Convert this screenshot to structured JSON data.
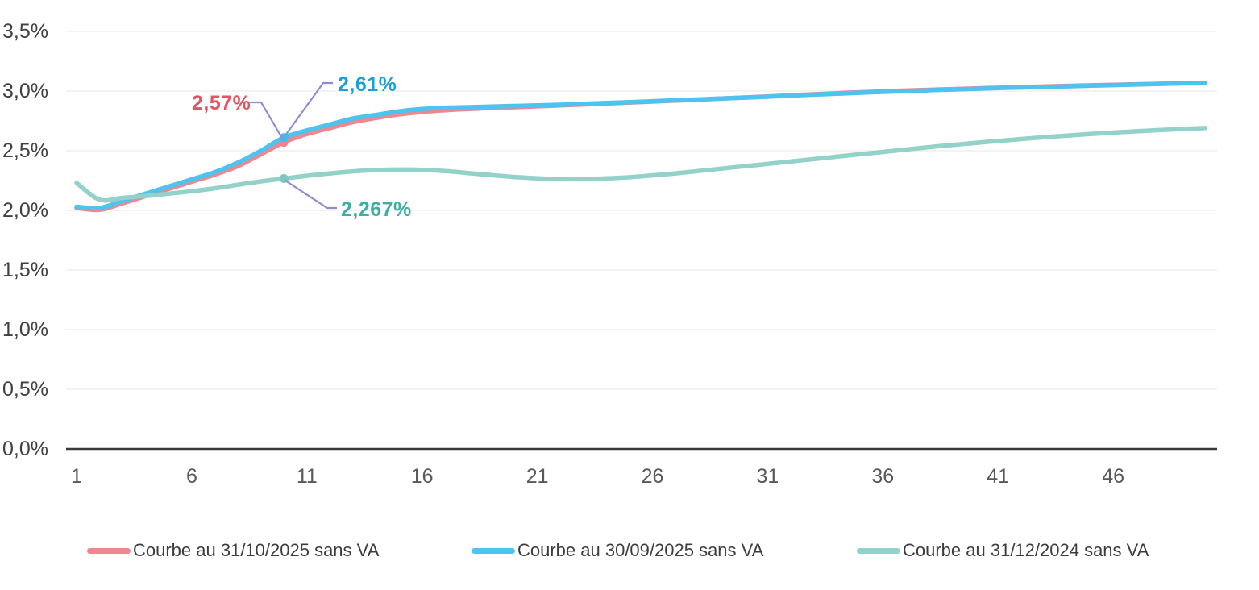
{
  "axes": {
    "y_ticks": [
      "3,5%",
      "3,0%",
      "2,5%",
      "2,0%",
      "1,5%",
      "1,0%",
      "0,5%",
      "0,0%"
    ],
    "x_ticks": [
      "1",
      "6",
      "11",
      "16",
      "21",
      "26",
      "31",
      "36",
      "41",
      "46"
    ]
  },
  "annotations": {
    "red_point_label": "2,57%",
    "blue_point_label": "2,61%",
    "teal_point_label": "2,267%"
  },
  "legend": {
    "items": [
      {
        "label": "Courbe au 31/10/2025 sans VA",
        "color": "#F0868E"
      },
      {
        "label": "Courbe au 30/09/2025 sans VA",
        "color": "#4DC3F0"
      },
      {
        "label": "Courbe au 31/12/2024 sans VA",
        "color": "#92D2C9"
      }
    ]
  },
  "colors": {
    "red_series": "#F0868E",
    "blue_series": "#4DC3F0",
    "teal_series": "#92D2C9",
    "red_label_text": "#E25563",
    "blue_label_text": "#1AA0DB",
    "teal_label_text": "#3FAFA4",
    "callout_line": "#8D8DD6",
    "gridline": "#EFEFEF",
    "axis_line": "#3a3a3a"
  },
  "chart_data": {
    "type": "line",
    "x": [
      1,
      2,
      3,
      4,
      5,
      6,
      7,
      8,
      9,
      10,
      11,
      12,
      13,
      14,
      15,
      16,
      17,
      18,
      19,
      20,
      21,
      22,
      23,
      24,
      25,
      26,
      27,
      28,
      29,
      30,
      31,
      32,
      33,
      34,
      35,
      36,
      37,
      38,
      39,
      40,
      41,
      42,
      43,
      44,
      45,
      46,
      47,
      48,
      49,
      50
    ],
    "series": [
      {
        "name": "Courbe au 31/10/2025 sans VA",
        "color": "#F0868E",
        "values": [
          2.02,
          2.005,
          2.06,
          2.12,
          2.18,
          2.24,
          2.3,
          2.37,
          2.47,
          2.57,
          2.64,
          2.69,
          2.74,
          2.775,
          2.805,
          2.825,
          2.84,
          2.85,
          2.858,
          2.865,
          2.872,
          2.88,
          2.888,
          2.896,
          2.904,
          2.912,
          2.92,
          2.928,
          2.937,
          2.946,
          2.955,
          2.964,
          2.973,
          2.982,
          2.99,
          2.997,
          3.004,
          3.01,
          3.016,
          3.022,
          3.028,
          3.033,
          3.038,
          3.043,
          3.048,
          3.053,
          3.057,
          3.061,
          3.065,
          3.068
        ]
      },
      {
        "name": "Courbe au 30/09/2025 sans VA",
        "color": "#4DC3F0",
        "values": [
          2.03,
          2.02,
          2.08,
          2.14,
          2.2,
          2.26,
          2.32,
          2.4,
          2.5,
          2.61,
          2.67,
          2.72,
          2.77,
          2.8,
          2.83,
          2.85,
          2.86,
          2.865,
          2.87,
          2.875,
          2.88,
          2.885,
          2.893,
          2.9,
          2.907,
          2.915,
          2.923,
          2.93,
          2.938,
          2.945,
          2.953,
          2.962,
          2.97,
          2.978,
          2.986,
          2.993,
          3.0,
          3.007,
          3.013,
          3.019,
          3.025,
          3.03,
          3.035,
          3.04,
          3.045,
          3.05,
          3.055,
          3.06,
          3.065,
          3.07
        ]
      },
      {
        "name": "Courbe au 31/12/2024 sans VA",
        "color": "#92D2C9",
        "values": [
          2.23,
          2.09,
          2.105,
          2.12,
          2.14,
          2.16,
          2.185,
          2.215,
          2.243,
          2.267,
          2.29,
          2.31,
          2.327,
          2.338,
          2.342,
          2.34,
          2.33,
          2.313,
          2.295,
          2.28,
          2.268,
          2.262,
          2.262,
          2.268,
          2.278,
          2.293,
          2.31,
          2.33,
          2.35,
          2.37,
          2.39,
          2.41,
          2.43,
          2.45,
          2.47,
          2.49,
          2.51,
          2.53,
          2.548,
          2.565,
          2.582,
          2.598,
          2.613,
          2.627,
          2.64,
          2.652,
          2.663,
          2.673,
          2.682,
          2.69
        ]
      }
    ],
    "annotated_points": [
      {
        "series": "Courbe au 31/10/2025 sans VA",
        "x": 10,
        "value": 2.57,
        "label": "2,57%"
      },
      {
        "series": "Courbe au 30/09/2025 sans VA",
        "x": 10,
        "value": 2.61,
        "label": "2,61%"
      },
      {
        "series": "Courbe au 31/12/2024 sans VA",
        "x": 10,
        "value": 2.267,
        "label": "2,267%"
      }
    ],
    "title": "",
    "xlabel": "",
    "ylabel": "",
    "ylim": [
      0,
      3.5
    ],
    "y_tick_step": 0.5,
    "y_tick_format": "percent_fr",
    "grid": true,
    "legend_position": "bottom"
  }
}
